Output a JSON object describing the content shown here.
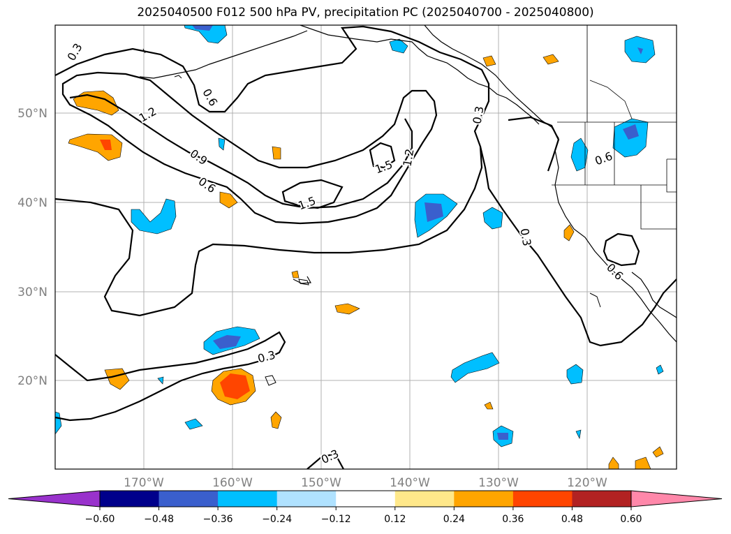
{
  "title": "2025040500 F012 500 hPa PV, precipitation PC (2025040700 - 2025040800)",
  "latitude_labels": [
    "50°N",
    "40°N",
    "30°N",
    "20°N"
  ],
  "longitude_labels": [
    "170°W",
    "160°W",
    "150°W",
    "140°W",
    "130°W",
    "120°W"
  ],
  "colorbar": {
    "tick_labels": [
      "−0.60",
      "−0.48",
      "−0.36",
      "−0.24",
      "−0.12",
      "0.12",
      "0.24",
      "0.36",
      "0.48",
      "0.60"
    ],
    "colors": [
      "#9932cc",
      "#00008b",
      "#3a5fcd",
      "#00bfff",
      "#b0e2ff",
      "#ffffff",
      "#ffe88a",
      "#ffa500",
      "#ff4500",
      "#b22222",
      "#ff88aa"
    ]
  },
  "pv_contour_labels": [
    "0.3",
    "0.6",
    "1.2",
    "0.9",
    "0.6",
    "1.5",
    "1.5",
    "1.2",
    "0.3",
    "0.3",
    "0.6",
    "0.3",
    "0.3",
    "0.6"
  ]
}
